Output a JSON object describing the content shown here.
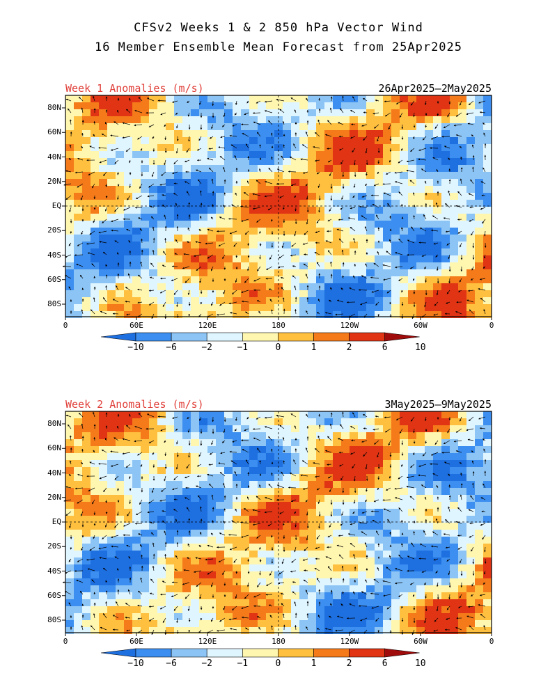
{
  "title": {
    "line1": "CFSv2 Weeks 1 & 2 850 hPa Vector Wind",
    "line2": "16 Member Ensemble Mean Forecast from 25Apr2025"
  },
  "panels": [
    {
      "label": "Week 1 Anomalies (m/s)",
      "dates": "26Apr2025–2May2025"
    },
    {
      "label": "Week 2 Anomalies (m/s)",
      "dates": "3May2025–9May2025"
    }
  ],
  "axes": {
    "lat_labels": [
      "80N",
      "60N",
      "40N",
      "20N",
      "EQ",
      "20S",
      "40S",
      "60S",
      "80S"
    ],
    "lon_labels": [
      "0",
      "60E",
      "120E",
      "180",
      "120W",
      "60W",
      "0"
    ]
  },
  "colorbar": {
    "labels": [
      "−10",
      "−6",
      "−2",
      "−1",
      "0",
      "1",
      "2",
      "6",
      "10"
    ],
    "colors": [
      "#1e6fe0",
      "#3c8ff0",
      "#8cc4f5",
      "#dff5ff",
      "#fff7b0",
      "#ffc040",
      "#f57a1a",
      "#e03414",
      "#a00c0c"
    ],
    "colors_full": [
      "#1e6fe0",
      "#3c8ff0",
      "#8cc4f5",
      "#dff5ff",
      "#fff7b0",
      "#ffc040",
      "#f57a1a",
      "#e03414"
    ]
  },
  "chart_data": {
    "type": "heatmap",
    "variable": "850 hPa vector wind anomaly",
    "units": "m/s",
    "contour_levels": [
      -10,
      -6,
      -2,
      -1,
      0,
      1,
      2,
      6,
      10
    ],
    "xlim": [
      "0",
      "0"
    ],
    "ylim": [
      "90S",
      "90N"
    ]
  }
}
